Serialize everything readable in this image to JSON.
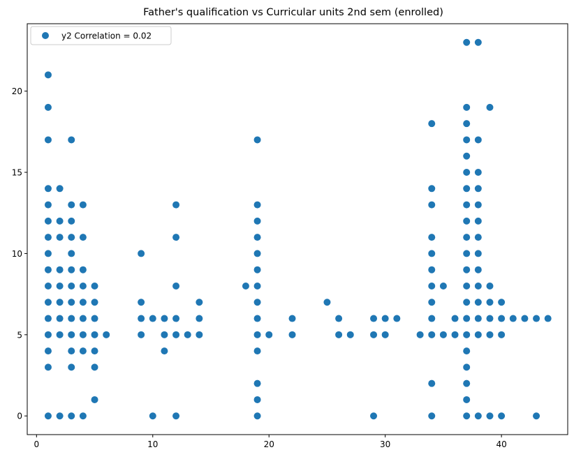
{
  "chart_data": {
    "type": "scatter",
    "title": "Father's qualification vs Curricular units 2nd sem (enrolled)",
    "xlabel": "",
    "ylabel": "",
    "xlim": [
      -0.8,
      45.7
    ],
    "ylim": [
      -1.15,
      24.15
    ],
    "xticks": [
      0,
      10,
      20,
      30,
      40
    ],
    "yticks": [
      0,
      5,
      10,
      15,
      20
    ],
    "grid": false,
    "legend": {
      "position": "top-left",
      "entries": [
        "y2 Correlation = 0.02"
      ]
    },
    "colors": {
      "marker": "#1f77b4"
    },
    "series": [
      {
        "name": "y2 Correlation = 0.02",
        "points": [
          [
            1,
            0
          ],
          [
            1,
            3
          ],
          [
            1,
            4
          ],
          [
            1,
            5
          ],
          [
            1,
            6
          ],
          [
            1,
            7
          ],
          [
            1,
            8
          ],
          [
            1,
            9
          ],
          [
            1,
            10
          ],
          [
            1,
            11
          ],
          [
            1,
            12
          ],
          [
            1,
            13
          ],
          [
            1,
            14
          ],
          [
            1,
            17
          ],
          [
            1,
            19
          ],
          [
            1,
            21
          ],
          [
            2,
            0
          ],
          [
            2,
            5
          ],
          [
            2,
            6
          ],
          [
            2,
            7
          ],
          [
            2,
            8
          ],
          [
            2,
            9
          ],
          [
            2,
            11
          ],
          [
            2,
            12
          ],
          [
            2,
            14
          ],
          [
            3,
            0
          ],
          [
            3,
            3
          ],
          [
            3,
            4
          ],
          [
            3,
            5
          ],
          [
            3,
            6
          ],
          [
            3,
            7
          ],
          [
            3,
            8
          ],
          [
            3,
            9
          ],
          [
            3,
            10
          ],
          [
            3,
            11
          ],
          [
            3,
            12
          ],
          [
            3,
            13
          ],
          [
            3,
            17
          ],
          [
            4,
            0
          ],
          [
            4,
            4
          ],
          [
            4,
            5
          ],
          [
            4,
            6
          ],
          [
            4,
            7
          ],
          [
            4,
            8
          ],
          [
            4,
            9
          ],
          [
            4,
            11
          ],
          [
            4,
            13
          ],
          [
            5,
            1
          ],
          [
            5,
            3
          ],
          [
            5,
            4
          ],
          [
            5,
            5
          ],
          [
            5,
            6
          ],
          [
            5,
            7
          ],
          [
            5,
            8
          ],
          [
            6,
            5
          ],
          [
            9,
            5
          ],
          [
            9,
            6
          ],
          [
            9,
            7
          ],
          [
            9,
            10
          ],
          [
            10,
            0
          ],
          [
            10,
            6
          ],
          [
            11,
            4
          ],
          [
            11,
            5
          ],
          [
            11,
            6
          ],
          [
            12,
            0
          ],
          [
            12,
            5
          ],
          [
            12,
            6
          ],
          [
            12,
            8
          ],
          [
            12,
            11
          ],
          [
            12,
            13
          ],
          [
            13,
            5
          ],
          [
            14,
            5
          ],
          [
            14,
            6
          ],
          [
            14,
            7
          ],
          [
            18,
            8
          ],
          [
            19,
            0
          ],
          [
            19,
            1
          ],
          [
            19,
            2
          ],
          [
            19,
            4
          ],
          [
            19,
            5
          ],
          [
            19,
            6
          ],
          [
            19,
            7
          ],
          [
            19,
            8
          ],
          [
            19,
            9
          ],
          [
            19,
            10
          ],
          [
            19,
            11
          ],
          [
            19,
            12
          ],
          [
            19,
            13
          ],
          [
            19,
            17
          ],
          [
            20,
            5
          ],
          [
            22,
            5
          ],
          [
            22,
            6
          ],
          [
            25,
            7
          ],
          [
            26,
            5
          ],
          [
            26,
            6
          ],
          [
            27,
            5
          ],
          [
            29,
            0
          ],
          [
            29,
            5
          ],
          [
            29,
            6
          ],
          [
            30,
            5
          ],
          [
            30,
            6
          ],
          [
            31,
            6
          ],
          [
            33,
            5
          ],
          [
            34,
            0
          ],
          [
            34,
            2
          ],
          [
            34,
            5
          ],
          [
            34,
            6
          ],
          [
            34,
            7
          ],
          [
            34,
            8
          ],
          [
            34,
            9
          ],
          [
            34,
            10
          ],
          [
            34,
            11
          ],
          [
            34,
            13
          ],
          [
            34,
            14
          ],
          [
            34,
            18
          ],
          [
            35,
            5
          ],
          [
            35,
            8
          ],
          [
            36,
            5
          ],
          [
            36,
            6
          ],
          [
            37,
            0
          ],
          [
            37,
            1
          ],
          [
            37,
            2
          ],
          [
            37,
            3
          ],
          [
            37,
            4
          ],
          [
            37,
            5
          ],
          [
            37,
            6
          ],
          [
            37,
            7
          ],
          [
            37,
            8
          ],
          [
            37,
            9
          ],
          [
            37,
            10
          ],
          [
            37,
            11
          ],
          [
            37,
            12
          ],
          [
            37,
            13
          ],
          [
            37,
            14
          ],
          [
            37,
            15
          ],
          [
            37,
            16
          ],
          [
            37,
            17
          ],
          [
            37,
            18
          ],
          [
            37,
            19
          ],
          [
            37,
            23
          ],
          [
            38,
            0
          ],
          [
            38,
            5
          ],
          [
            38,
            6
          ],
          [
            38,
            7
          ],
          [
            38,
            8
          ],
          [
            38,
            9
          ],
          [
            38,
            10
          ],
          [
            38,
            11
          ],
          [
            38,
            12
          ],
          [
            38,
            13
          ],
          [
            38,
            14
          ],
          [
            38,
            15
          ],
          [
            38,
            17
          ],
          [
            38,
            23
          ],
          [
            39,
            0
          ],
          [
            39,
            5
          ],
          [
            39,
            6
          ],
          [
            39,
            7
          ],
          [
            39,
            8
          ],
          [
            39,
            19
          ],
          [
            40,
            0
          ],
          [
            40,
            5
          ],
          [
            40,
            6
          ],
          [
            40,
            7
          ],
          [
            41,
            6
          ],
          [
            42,
            6
          ],
          [
            43,
            0
          ],
          [
            43,
            6
          ],
          [
            44,
            6
          ]
        ]
      }
    ]
  }
}
